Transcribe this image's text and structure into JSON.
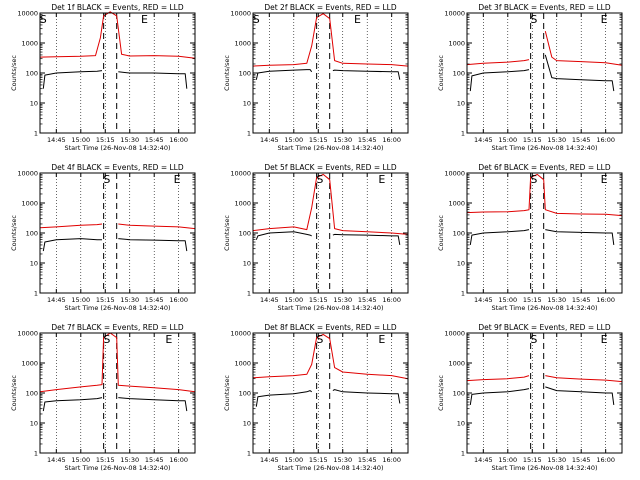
{
  "colors": {
    "events": "#000000",
    "lld": "#e00000",
    "axes": "#000000"
  },
  "markers": {
    "s": "S",
    "e": "E"
  },
  "chart_data": [
    {
      "type": "line",
      "title": "Det 1f BLACK = Events, RED = LLD",
      "xlabel": "Start Time (26-Nov-08 14:32:40)",
      "ylabel": "Counts/sec",
      "yscale": "log",
      "ylim": [
        1,
        10000
      ],
      "y_ticks": [
        "1",
        "10",
        "100",
        "1000",
        "10000"
      ],
      "xlim": [
        "14:35",
        "16:10"
      ],
      "x_ticks": [
        "14:45",
        "15:00",
        "15:15",
        "15:30",
        "15:45",
        "16:00"
      ],
      "start_marker_time": "14:37",
      "end_marker_time": "15:39",
      "saa_dashed_lines": [
        "15:14",
        "15:22"
      ],
      "grid": "dotted vertical",
      "series": [
        {
          "name": "BLACK = Events",
          "color": "#000000",
          "x": [
            "14:37",
            "14:38",
            "14:45",
            "15:00",
            "15:10",
            "15:13",
            "15:14"
          ],
          "y": [
            30,
            85,
            100,
            110,
            115,
            120,
            null
          ]
        },
        {
          "name": "BLACK = Events",
          "color": "#000000",
          "x": [
            "15:22",
            "15:23",
            "15:30",
            "15:45",
            "16:00",
            "16:04",
            "16:05"
          ],
          "y": [
            null,
            110,
            100,
            100,
            95,
            95,
            30
          ]
        },
        {
          "name": "RED = LLD",
          "color": "#e00000",
          "x": [
            "14:35",
            "14:45",
            "15:00",
            "15:09",
            "15:12",
            "15:14",
            "15:18",
            "15:22",
            "15:25",
            "15:30",
            "15:45",
            "16:00",
            "16:10"
          ],
          "y": [
            340,
            350,
            360,
            380,
            1500,
            8000,
            11000,
            8000,
            420,
            370,
            380,
            360,
            310
          ]
        }
      ]
    },
    {
      "type": "line",
      "title": "Det 2f BLACK = Events, RED = LLD",
      "xlabel": "Start Time (26-Nov-08 14:32:40)",
      "ylabel": "Counts/sec",
      "yscale": "log",
      "ylim": [
        1,
        10000
      ],
      "y_ticks": [
        "1",
        "10",
        "100",
        "1000",
        "10000"
      ],
      "xlim": [
        "14:35",
        "16:10"
      ],
      "x_ticks": [
        "14:45",
        "15:00",
        "15:15",
        "15:30",
        "15:45",
        "16:00"
      ],
      "start_marker_time": "14:37",
      "end_marker_time": "15:39",
      "saa_dashed_lines": [
        "15:14",
        "15:22"
      ],
      "grid": "dotted vertical",
      "series": [
        {
          "name": "BLACK = Events",
          "color": "#000000",
          "x": [
            "14:37",
            "14:38",
            "14:45",
            "15:00",
            "15:08",
            "15:10",
            "15:11"
          ],
          "y": [
            60,
            100,
            115,
            125,
            130,
            130,
            110
          ]
        },
        {
          "name": "BLACK = Events",
          "color": "#000000",
          "x": [
            "15:24",
            "15:25",
            "15:30",
            "15:45",
            "16:00",
            "16:04",
            "16:05"
          ],
          "y": [
            120,
            125,
            120,
            115,
            110,
            110,
            60
          ]
        },
        {
          "name": "RED = LLD",
          "color": "#e00000",
          "x": [
            "14:35",
            "14:45",
            "15:00",
            "15:08",
            "15:11",
            "15:14",
            "15:18",
            "15:22",
            "15:25",
            "15:30",
            "15:45",
            "16:00",
            "16:10"
          ],
          "y": [
            170,
            180,
            190,
            210,
            800,
            7000,
            9500,
            6500,
            260,
            210,
            200,
            190,
            170
          ]
        }
      ]
    },
    {
      "type": "line",
      "title": "Det 3f BLACK = Events, RED = LLD",
      "xlabel": "Start Time (26-Nov-08 14:32:40)",
      "ylabel": "Counts/sec",
      "yscale": "log",
      "ylim": [
        1,
        10000
      ],
      "y_ticks": [
        "1",
        "10",
        "100",
        "1000",
        "10000"
      ],
      "xlim": [
        "14:35",
        "16:10"
      ],
      "x_ticks": [
        "14:45",
        "15:00",
        "15:15",
        "15:30",
        "15:45",
        "16:00"
      ],
      "start_marker_time": "15:16",
      "end_marker_time": "15:59",
      "saa_dashed_lines": [
        "15:14",
        "15:22"
      ],
      "grid": "dotted vertical",
      "series": [
        {
          "name": "BLACK = Events",
          "color": "#000000",
          "x": [
            "14:37",
            "14:38",
            "14:45",
            "15:00",
            "15:10",
            "15:13",
            "15:14"
          ],
          "y": [
            25,
            80,
            100,
            110,
            120,
            130,
            null
          ]
        },
        {
          "name": "BLACK = Events",
          "color": "#000000",
          "x": [
            "15:22",
            "15:23",
            "15:27",
            "15:30",
            "15:45",
            "16:00",
            "16:04",
            "16:05"
          ],
          "y": [
            null,
            400,
            70,
            65,
            60,
            55,
            55,
            25
          ]
        },
        {
          "name": "RED = LLD",
          "color": "#e00000",
          "x": [
            "14:35",
            "14:45",
            "15:00",
            "15:10",
            "15:13",
            "15:14",
            "15:18",
            "15:22",
            "15:23",
            "15:27",
            "15:30",
            "15:45",
            "16:00",
            "16:10"
          ],
          "y": [
            190,
            210,
            230,
            260,
            280,
            null,
            null,
            null,
            2500,
            340,
            260,
            240,
            220,
            180
          ]
        }
      ]
    },
    {
      "type": "line",
      "title": "Det 4f BLACK = Events, RED = LLD",
      "xlabel": "Start Time (26-Nov-08 14:32:40)",
      "ylabel": "Counts/sec",
      "yscale": "log",
      "ylim": [
        1,
        10000
      ],
      "y_ticks": [
        "1",
        "10",
        "100",
        "1000",
        "10000"
      ],
      "xlim": [
        "14:35",
        "16:10"
      ],
      "x_ticks": [
        "14:45",
        "15:00",
        "15:15",
        "15:30",
        "15:45",
        "16:00"
      ],
      "start_marker_time": "15:16",
      "end_marker_time": "15:59",
      "saa_dashed_lines": [
        "15:14",
        "15:22"
      ],
      "grid": "dotted vertical",
      "series": [
        {
          "name": "BLACK = Events",
          "color": "#000000",
          "x": [
            "14:37",
            "14:38",
            "14:45",
            "15:00",
            "15:10",
            "15:13",
            "15:14"
          ],
          "y": [
            25,
            50,
            60,
            65,
            60,
            60,
            null
          ]
        },
        {
          "name": "BLACK = Events",
          "color": "#000000",
          "x": [
            "15:22",
            "15:23",
            "15:30",
            "15:45",
            "16:00",
            "16:04",
            "16:05"
          ],
          "y": [
            null,
            65,
            60,
            58,
            55,
            55,
            25
          ]
        },
        {
          "name": "RED = LLD",
          "color": "#e00000",
          "x": [
            "14:35",
            "14:45",
            "15:00",
            "15:10",
            "15:13",
            "15:14",
            "15:18",
            "15:22",
            "15:23",
            "15:30",
            "15:45",
            "16:00",
            "16:10"
          ],
          "y": [
            150,
            160,
            180,
            190,
            200,
            null,
            null,
            null,
            200,
            180,
            170,
            160,
            140
          ]
        }
      ]
    },
    {
      "type": "line",
      "title": "Det 5f BLACK = Events, RED = LLD",
      "xlabel": "Start Time (26-Nov-08 14:32:40)",
      "ylabel": "Counts/sec",
      "yscale": "log",
      "ylim": [
        1,
        10000
      ],
      "y_ticks": [
        "1",
        "10",
        "100",
        "1000",
        "10000"
      ],
      "xlim": [
        "14:35",
        "16:10"
      ],
      "x_ticks": [
        "14:45",
        "15:00",
        "15:15",
        "15:30",
        "15:45",
        "16:00"
      ],
      "start_marker_time": "15:16",
      "end_marker_time": "15:54",
      "saa_dashed_lines": [
        "15:14",
        "15:22"
      ],
      "grid": "dotted vertical",
      "series": [
        {
          "name": "BLACK = Events",
          "color": "#000000",
          "x": [
            "14:37",
            "14:38",
            "14:45",
            "15:00",
            "15:08",
            "15:10",
            "15:11"
          ],
          "y": [
            60,
            80,
            100,
            110,
            90,
            85,
            80
          ]
        },
        {
          "name": "BLACK = Events",
          "color": "#000000",
          "x": [
            "15:24",
            "15:25",
            "15:30",
            "15:45",
            "16:00",
            "16:04",
            "16:05"
          ],
          "y": [
            85,
            90,
            88,
            85,
            80,
            80,
            40
          ]
        },
        {
          "name": "RED = LLD",
          "color": "#e00000",
          "x": [
            "14:35",
            "14:45",
            "15:00",
            "15:08",
            "15:11",
            "15:14",
            "15:18",
            "15:22",
            "15:25",
            "15:30",
            "15:45",
            "16:00",
            "16:10"
          ],
          "y": [
            120,
            140,
            160,
            130,
            700,
            7000,
            9000,
            6000,
            140,
            120,
            110,
            100,
            90
          ]
        }
      ]
    },
    {
      "type": "line",
      "title": "Det 6f BLACK = Events, RED = LLD",
      "xlabel": "Start Time (26-Nov-08 14:32:40)",
      "ylabel": "Counts/sec",
      "yscale": "log",
      "ylim": [
        1,
        10000
      ],
      "y_ticks": [
        "1",
        "10",
        "100",
        "1000",
        "10000"
      ],
      "xlim": [
        "14:35",
        "16:10"
      ],
      "x_ticks": [
        "14:45",
        "15:00",
        "15:15",
        "15:30",
        "15:45",
        "16:00"
      ],
      "start_marker_time": "15:16",
      "end_marker_time": "15:59",
      "saa_dashed_lines": [
        "15:14",
        "15:22"
      ],
      "grid": "dotted vertical",
      "series": [
        {
          "name": "BLACK = Events",
          "color": "#000000",
          "x": [
            "14:37",
            "14:38",
            "14:45",
            "15:00",
            "15:10",
            "15:13",
            "15:14"
          ],
          "y": [
            40,
            85,
            100,
            110,
            120,
            130,
            null
          ]
        },
        {
          "name": "BLACK = Events",
          "color": "#000000",
          "x": [
            "15:22",
            "15:23",
            "15:30",
            "15:45",
            "16:00",
            "16:04",
            "16:05"
          ],
          "y": [
            null,
            130,
            110,
            105,
            100,
            100,
            40
          ]
        },
        {
          "name": "RED = LLD",
          "color": "#e00000",
          "x": [
            "14:35",
            "14:45",
            "15:00",
            "15:10",
            "15:13",
            "15:14",
            "15:18",
            "15:22",
            "15:23",
            "15:30",
            "15:45",
            "16:00",
            "16:10"
          ],
          "y": [
            480,
            500,
            510,
            560,
            600,
            7000,
            9000,
            6000,
            600,
            450,
            430,
            420,
            380
          ]
        }
      ]
    },
    {
      "type": "line",
      "title": "Det 7f BLACK = Events, RED = LLD",
      "xlabel": "Start Time (26-Nov-08 14:32:40)",
      "ylabel": "Counts/sec",
      "yscale": "log",
      "ylim": [
        1,
        10000
      ],
      "y_ticks": [
        "1",
        "10",
        "100",
        "1000",
        "10000"
      ],
      "xlim": [
        "14:35",
        "16:10"
      ],
      "x_ticks": [
        "14:45",
        "15:00",
        "15:15",
        "15:30",
        "15:45",
        "16:00"
      ],
      "start_marker_time": "15:16",
      "end_marker_time": "15:54",
      "saa_dashed_lines": [
        "15:14",
        "15:22"
      ],
      "grid": "dotted vertical",
      "series": [
        {
          "name": "BLACK = Events",
          "color": "#000000",
          "x": [
            "14:37",
            "14:38",
            "14:45",
            "15:00",
            "15:10",
            "15:13",
            "15:14"
          ],
          "y": [
            25,
            50,
            55,
            60,
            65,
            70,
            null
          ]
        },
        {
          "name": "BLACK = Events",
          "color": "#000000",
          "x": [
            "15:22",
            "15:23",
            "15:30",
            "15:45",
            "16:00",
            "16:04",
            "16:05"
          ],
          "y": [
            null,
            70,
            65,
            60,
            55,
            55,
            25
          ]
        },
        {
          "name": "RED = LLD",
          "color": "#e00000",
          "x": [
            "14:35",
            "14:45",
            "15:00",
            "15:10",
            "15:13",
            "15:14",
            "15:18",
            "15:22",
            "15:23",
            "15:30",
            "15:45",
            "16:00",
            "16:10"
          ],
          "y": [
            110,
            130,
            160,
            180,
            190,
            7000,
            10000,
            7000,
            180,
            170,
            150,
            130,
            110
          ]
        }
      ]
    },
    {
      "type": "line",
      "title": "Det 8f BLACK = Events, RED = LLD",
      "xlabel": "Start Time (26-Nov-08 14:32:40)",
      "ylabel": "Counts/sec",
      "yscale": "log",
      "ylim": [
        1,
        10000
      ],
      "y_ticks": [
        "1",
        "10",
        "100",
        "1000",
        "10000"
      ],
      "xlim": [
        "14:35",
        "16:10"
      ],
      "x_ticks": [
        "14:45",
        "15:00",
        "15:15",
        "15:30",
        "15:45",
        "16:00"
      ],
      "start_marker_time": "15:16",
      "end_marker_time": "15:54",
      "saa_dashed_lines": [
        "15:14",
        "15:22"
      ],
      "grid": "dotted vertical",
      "series": [
        {
          "name": "BLACK = Events",
          "color": "#000000",
          "x": [
            "14:37",
            "14:38",
            "14:45",
            "15:00",
            "15:08",
            "15:10",
            "15:11"
          ],
          "y": [
            35,
            75,
            85,
            95,
            110,
            120,
            110
          ]
        },
        {
          "name": "BLACK = Events",
          "color": "#000000",
          "x": [
            "15:24",
            "15:25",
            "15:30",
            "15:45",
            "16:00",
            "16:04",
            "16:05"
          ],
          "y": [
            120,
            130,
            110,
            100,
            95,
            95,
            45
          ]
        },
        {
          "name": "RED = LLD",
          "color": "#e00000",
          "x": [
            "14:35",
            "14:45",
            "15:00",
            "15:08",
            "15:11",
            "15:14",
            "15:18",
            "15:22",
            "15:25",
            "15:30",
            "15:45",
            "16:00",
            "16:10"
          ],
          "y": [
            320,
            350,
            380,
            420,
            900,
            7000,
            9000,
            6500,
            700,
            500,
            420,
            380,
            300
          ]
        }
      ]
    },
    {
      "type": "line",
      "title": "Det 9f BLACK = Events, RED = LLD",
      "xlabel": "Start Time (26-Nov-08 14:32:40)",
      "ylabel": "Counts/sec",
      "yscale": "log",
      "ylim": [
        1,
        10000
      ],
      "y_ticks": [
        "1",
        "10",
        "100",
        "1000",
        "10000"
      ],
      "xlim": [
        "14:35",
        "16:10"
      ],
      "x_ticks": [
        "14:45",
        "15:00",
        "15:15",
        "15:30",
        "15:45",
        "16:00"
      ],
      "start_marker_time": "15:16",
      "end_marker_time": "15:59",
      "saa_dashed_lines": [
        "15:14",
        "15:22"
      ],
      "grid": "dotted vertical",
      "series": [
        {
          "name": "BLACK = Events",
          "color": "#000000",
          "x": [
            "14:37",
            "14:38",
            "14:45",
            "15:00",
            "15:10",
            "15:13",
            "15:14"
          ],
          "y": [
            40,
            90,
            100,
            110,
            130,
            140,
            null
          ]
        },
        {
          "name": "BLACK = Events",
          "color": "#000000",
          "x": [
            "15:22",
            "15:23",
            "15:30",
            "15:45",
            "16:00",
            "16:04",
            "16:05"
          ],
          "y": [
            null,
            160,
            120,
            110,
            100,
            100,
            40
          ]
        },
        {
          "name": "RED = LLD",
          "color": "#e00000",
          "x": [
            "14:35",
            "14:45",
            "15:00",
            "15:10",
            "15:13",
            "15:14",
            "15:18",
            "15:22",
            "15:23",
            "15:30",
            "15:45",
            "16:00",
            "16:10"
          ],
          "y": [
            260,
            280,
            300,
            340,
            380,
            null,
            null,
            null,
            380,
            320,
            290,
            270,
            240
          ]
        }
      ]
    }
  ]
}
